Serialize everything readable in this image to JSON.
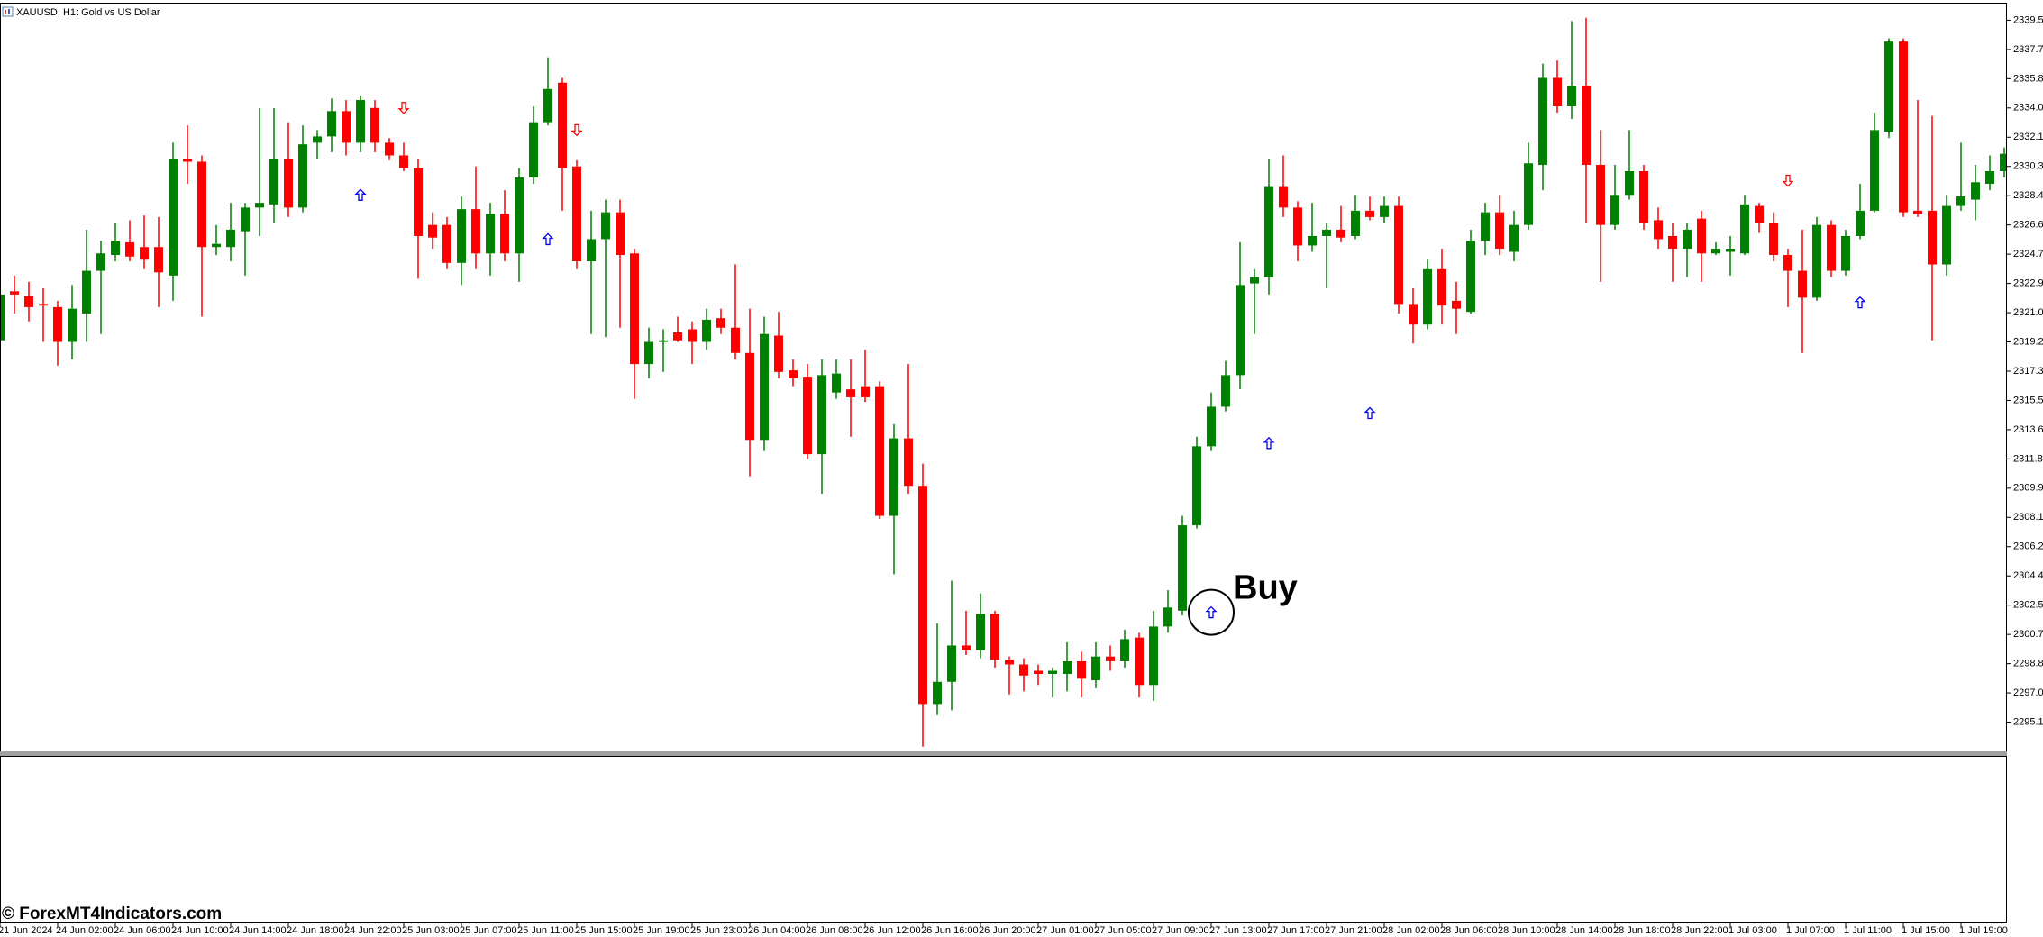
{
  "chart_data": {
    "type": "candlestick",
    "title": "XAUUSD, H1:  Gold vs US Dollar",
    "watermark": "© ForexMT4Indicators.com",
    "up_color": "#008000",
    "down_color": "#ff0000",
    "categories": [
      "21 Jun 2024",
      null,
      null,
      null,
      "24 Jun 02:00",
      null,
      null,
      null,
      "24 Jun 06:00",
      null,
      null,
      null,
      "24 Jun 10:00",
      null,
      null,
      null,
      "24 Jun 14:00",
      null,
      null,
      null,
      "24 Jun 18:00",
      null,
      null,
      null,
      "24 Jun 22:00",
      null,
      null,
      null,
      "25 Jun 03:00",
      null,
      null,
      null,
      "25 Jun 07:00",
      null,
      null,
      null,
      "25 Jun 11:00",
      null,
      null,
      null,
      "25 Jun 15:00",
      null,
      null,
      null,
      "25 Jun 19:00",
      null,
      null,
      null,
      "25 Jun 23:00",
      null,
      null,
      null,
      "26 Jun 04:00",
      null,
      null,
      null,
      "26 Jun 08:00",
      null,
      null,
      null,
      "26 Jun 12:00",
      null,
      null,
      null,
      "26 Jun 16:00",
      null,
      null,
      null,
      "26 Jun 20:00",
      null,
      null,
      null,
      "27 Jun 01:00",
      null,
      null,
      null,
      "27 Jun 05:00",
      null,
      null,
      null,
      "27 Jun 09:00",
      null,
      null,
      null,
      "27 Jun 13:00",
      null,
      null,
      null,
      "27 Jun 17:00",
      null,
      null,
      null,
      "27 Jun 21:00",
      null,
      null,
      null,
      "28 Jun 02:00",
      null,
      null,
      null,
      "28 Jun 06:00",
      null,
      null,
      null,
      "28 Jun 10:00",
      null,
      null,
      null,
      "28 Jun 14:00",
      null,
      null,
      null,
      "28 Jun 18:00",
      null,
      null,
      null,
      "28 Jun 22:00",
      null,
      null,
      null,
      "1 Jul 03:00",
      null,
      null,
      null,
      "1 Jul 07:00",
      null,
      null,
      null,
      "1 Jul 11:00",
      null,
      null,
      null,
      "1 Jul 15:00",
      null,
      null,
      null,
      "1 Jul 19:00",
      null,
      null,
      null
    ],
    "open": [
      2319.3,
      2322.4,
      2322.1,
      2321.6,
      2321.4,
      2319.2,
      2321.0,
      2323.7,
      2324.7,
      2325.5,
      2325.2,
      2325.2,
      2323.4,
      2330.8,
      2330.6,
      2325.2,
      2325.2,
      2326.2,
      2327.7,
      2327.9,
      2330.8,
      2327.7,
      2331.8,
      2332.2,
      2333.8,
      2331.8,
      2334.0,
      2331.8,
      2331.0,
      2330.2,
      2326.6,
      2326.6,
      2324.2,
      2327.6,
      2324.8,
      2327.3,
      2324.8,
      2329.6,
      2333.1,
      2335.6,
      2330.3,
      2324.3,
      2325.7,
      2327.4,
      2324.8,
      2317.8,
      2319.2,
      2319.8,
      2320.0,
      2319.2,
      2320.7,
      2320.1,
      2318.5,
      2313.0,
      2319.6,
      2317.4,
      2317.0,
      2312.1,
      2316.0,
      2316.2,
      2316.4,
      2316.4,
      2308.2,
      2313.1,
      2310.1,
      2296.3,
      2297.7,
      2300.0,
      2299.7,
      2302.0,
      2299.1,
      2298.8,
      2298.4,
      2298.2,
      2298.2,
      2299.0,
      2297.8,
      2299.3,
      2299.0,
      2300.5,
      2297.5,
      2301.2,
      2302.2,
      2307.6,
      2312.6,
      2315.1,
      2317.1,
      2322.9,
      2323.3,
      2329.0,
      2327.7,
      2325.3,
      2325.9,
      2326.3,
      2325.9,
      2327.5,
      2327.1,
      2327.8,
      2321.6,
      2320.3,
      2323.8,
      2321.8,
      2321.1,
      2325.6,
      2327.4,
      2324.9,
      2326.6,
      2330.4,
      2335.9,
      2334.1,
      2335.4,
      2330.4,
      2326.6,
      2328.5,
      2330.0,
      2326.9,
      2325.9,
      2325.1,
      2327.0,
      2324.8,
      2324.9,
      2324.8,
      2327.8,
      2326.7,
      2324.7,
      2323.7,
      2322.0,
      2326.6,
      2323.7,
      2325.9,
      2327.5,
      2332.5,
      2338.2,
      2327.5,
      2327.5,
      2324.1,
      2327.8,
      2328.2,
      2329.2,
      2330.0
    ],
    "high": [
      2323.0,
      2323.4,
      2323.0,
      2322.6,
      2321.8,
      2322.8,
      2326.3,
      2325.6,
      2326.7,
      2326.9,
      2327.2,
      2327.1,
      2331.8,
      2332.9,
      2331.0,
      2326.6,
      2328.0,
      2328.0,
      2334.0,
      2334.0,
      2333.1,
      2332.9,
      2332.6,
      2334.6,
      2334.5,
      2334.8,
      2334.5,
      2332.1,
      2331.8,
      2330.8,
      2327.4,
      2327.1,
      2328.4,
      2330.3,
      2328.0,
      2328.8,
      2330.2,
      2334.1,
      2337.2,
      2335.9,
      2330.7,
      2327.5,
      2328.2,
      2328.2,
      2325.1,
      2320.1,
      2320.0,
      2320.8,
      2320.5,
      2321.3,
      2321.3,
      2324.1,
      2321.3,
      2320.8,
      2321.1,
      2318.1,
      2317.8,
      2318.1,
      2318.1,
      2318.1,
      2318.7,
      2316.7,
      2314.0,
      2317.8,
      2311.5,
      2301.4,
      2304.1,
      2302.2,
      2303.3,
      2302.2,
      2299.3,
      2299.2,
      2298.8,
      2298.6,
      2300.2,
      2299.6,
      2300.2,
      2300.0,
      2301.0,
      2300.8,
      2302.2,
      2303.5,
      2308.2,
      2313.2,
      2316.0,
      2318.0,
      2325.5,
      2323.8,
      2330.8,
      2331.0,
      2328.1,
      2328.0,
      2326.7,
      2327.8,
      2328.5,
      2328.4,
      2328.4,
      2328.4,
      2322.6,
      2324.4,
      2325.1,
      2323.0,
      2326.3,
      2328.0,
      2328.5,
      2327.5,
      2331.8,
      2336.8,
      2337.0,
      2339.5,
      2339.7,
      2332.6,
      2330.4,
      2332.6,
      2330.4,
      2327.7,
      2326.7,
      2326.7,
      2327.5,
      2325.5,
      2325.9,
      2328.5,
      2328.0,
      2327.4,
      2325.1,
      2326.3,
      2327.1,
      2326.9,
      2326.3,
      2329.2,
      2333.7,
      2338.4,
      2338.4,
      2334.5,
      2333.5,
      2328.5,
      2331.8,
      2330.4,
      2331.0,
      2331.5
    ],
    "low": [
      2319.2,
      2321.0,
      2320.5,
      2319.2,
      2317.7,
      2318.1,
      2319.2,
      2319.7,
      2324.3,
      2324.3,
      2323.8,
      2321.4,
      2321.8,
      2329.2,
      2320.8,
      2324.7,
      2324.3,
      2323.4,
      2325.9,
      2326.7,
      2327.1,
      2327.4,
      2330.8,
      2331.2,
      2331.0,
      2331.2,
      2331.2,
      2330.7,
      2330.0,
      2323.2,
      2325.1,
      2323.8,
      2322.8,
      2323.8,
      2323.4,
      2324.3,
      2323.0,
      2329.2,
      2332.9,
      2327.5,
      2323.8,
      2319.7,
      2319.5,
      2320.1,
      2315.6,
      2316.9,
      2317.3,
      2319.2,
      2317.8,
      2318.7,
      2319.7,
      2318.1,
      2310.7,
      2312.3,
      2316.9,
      2316.4,
      2311.8,
      2309.6,
      2315.6,
      2313.2,
      2315.4,
      2308.0,
      2304.5,
      2309.6,
      2293.6,
      2295.6,
      2295.9,
      2299.4,
      2299.2,
      2298.6,
      2296.9,
      2297.1,
      2297.5,
      2296.7,
      2297.1,
      2296.7,
      2297.3,
      2298.4,
      2298.6,
      2296.7,
      2296.5,
      2300.8,
      2301.9,
      2307.4,
      2312.3,
      2314.8,
      2316.2,
      2319.7,
      2322.2,
      2327.1,
      2324.3,
      2324.9,
      2322.6,
      2325.5,
      2325.7,
      2326.9,
      2326.7,
      2321.0,
      2319.1,
      2320.0,
      2320.3,
      2319.7,
      2321.0,
      2324.7,
      2324.7,
      2324.3,
      2326.3,
      2328.8,
      2333.7,
      2333.3,
      2326.7,
      2323.0,
      2326.3,
      2328.2,
      2326.3,
      2325.1,
      2323.0,
      2323.3,
      2323.0,
      2324.7,
      2323.4,
      2324.7,
      2326.1,
      2324.3,
      2321.4,
      2318.5,
      2321.8,
      2323.3,
      2323.4,
      2325.7,
      2327.4,
      2332.1,
      2327.1,
      2327.1,
      2319.3,
      2323.4,
      2327.5,
      2326.9,
      2328.8,
      2329.6
    ],
    "close": [
      2322.2,
      2322.2,
      2321.4,
      2321.5,
      2319.2,
      2321.3,
      2323.7,
      2324.8,
      2325.6,
      2324.6,
      2324.4,
      2323.6,
      2330.8,
      2330.6,
      2325.2,
      2325.4,
      2326.3,
      2327.7,
      2328.0,
      2330.8,
      2327.7,
      2331.7,
      2332.2,
      2333.8,
      2331.8,
      2334.5,
      2331.8,
      2331.0,
      2330.2,
      2325.9,
      2325.8,
      2324.2,
      2327.6,
      2324.8,
      2327.3,
      2324.8,
      2329.6,
      2333.1,
      2335.2,
      2330.2,
      2324.3,
      2325.7,
      2327.4,
      2324.7,
      2317.8,
      2319.2,
      2319.3,
      2319.3,
      2319.2,
      2320.6,
      2320.1,
      2318.5,
      2313.0,
      2319.7,
      2317.3,
      2316.9,
      2312.1,
      2317.1,
      2317.2,
      2315.7,
      2315.7,
      2308.2,
      2313.1,
      2310.1,
      2296.3,
      2297.7,
      2300.0,
      2299.7,
      2302.0,
      2299.1,
      2298.8,
      2298.1,
      2298.2,
      2298.4,
      2299.0,
      2297.9,
      2299.3,
      2299.0,
      2300.4,
      2297.5,
      2301.2,
      2302.4,
      2307.6,
      2312.6,
      2315.1,
      2317.1,
      2322.8,
      2323.3,
      2329.0,
      2327.7,
      2325.3,
      2325.9,
      2326.3,
      2325.8,
      2327.5,
      2327.1,
      2327.8,
      2321.6,
      2320.3,
      2323.8,
      2321.5,
      2321.3,
      2325.6,
      2327.4,
      2325.1,
      2326.6,
      2330.5,
      2335.9,
      2334.1,
      2335.4,
      2330.4,
      2326.6,
      2328.5,
      2330.0,
      2326.7,
      2325.7,
      2325.1,
      2326.3,
      2324.8,
      2325.1,
      2325.1,
      2327.9,
      2326.7,
      2324.7,
      2323.7,
      2322.0,
      2326.6,
      2323.7,
      2325.9,
      2327.5,
      2332.6,
      2338.2,
      2327.4,
      2327.3,
      2324.1,
      2327.8,
      2328.4,
      2329.3,
      2330.0,
      2331.1
    ],
    "ylim": [
      2293.3,
      2340.6
    ],
    "yticks": [
      2339.55,
      {
        "value": 2337.7,
        "label": "2337.70"
      },
      2335.85,
      {
        "value": 2334,
        "label": "2334.00"
      },
      2332.15,
      {
        "value": 2330.3,
        "label": "2330.30"
      },
      2328.45,
      {
        "value": 2326.6,
        "label": "2326.60"
      },
      2324.75,
      {
        "value": 2322.9,
        "label": "2322.90"
      },
      2321.05,
      {
        "value": 2319.2,
        "label": "2319.20"
      },
      2317.35,
      {
        "value": 2315.5,
        "label": "2315.50"
      },
      2313.65,
      {
        "value": 2311.8,
        "label": "2311.80"
      },
      2309.95,
      {
        "value": 2308.1,
        "label": "2308.10"
      },
      2306.25,
      {
        "value": 2304.4,
        "label": "2304.40"
      },
      2302.55,
      {
        "value": 2300.7,
        "label": "2300.70"
      },
      2298.85,
      {
        "value": 2297,
        "label": "2297.00"
      },
      2295.15
    ],
    "buy_signals": {
      "color": "#0000ff",
      "x": [
        25,
        38,
        84,
        88,
        95,
        129
      ],
      "values": [
        2328.5,
        2325.7,
        2302.1,
        2312.8,
        2314.7,
        2321.7
      ]
    },
    "sell_signals": {
      "color": "#ff0000",
      "x": [
        28,
        40,
        124
      ],
      "values": [
        2334.0,
        2332.6,
        2329.4
      ]
    },
    "annotations": [
      {
        "text": "Buy",
        "x": 84,
        "y": 2302.1
      }
    ]
  }
}
